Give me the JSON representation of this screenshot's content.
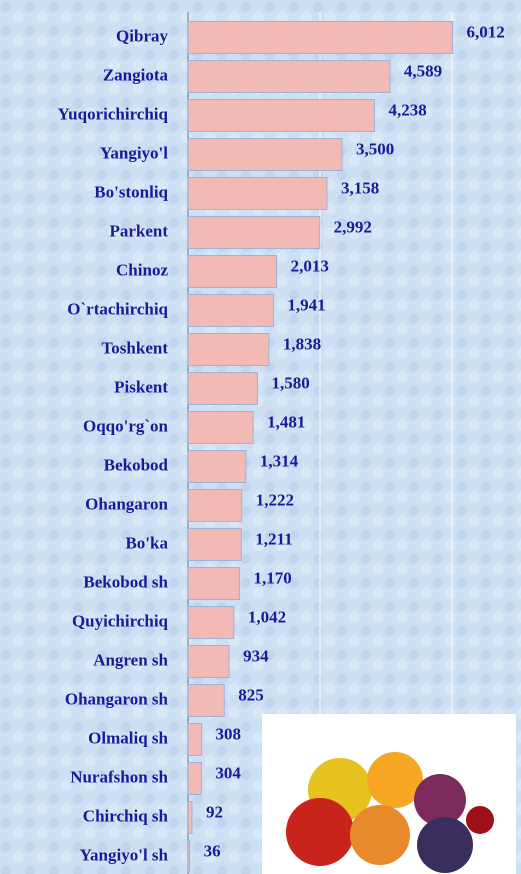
{
  "chart_data": {
    "type": "hbar",
    "categories": [
      "Qibray",
      "Zangiota",
      "Yuqorichirchiq",
      "Yangiyo'l",
      "Bo'stonliq",
      "Parkent",
      "Chinoz",
      "O`rtachirchiq",
      "Toshkent",
      "Piskent",
      "Oqqo'rg`on",
      "Bekobod",
      "Ohangaron",
      "Bo'ka",
      "Bekobod sh",
      "Quyichirchiq",
      "Angren sh",
      "Ohangaron sh",
      "Olmaliq sh",
      "Nurafshon sh",
      "Chirchiq sh",
      "Yangiyo'l sh"
    ],
    "values": [
      6012,
      4589,
      4238,
      3500,
      3158,
      2992,
      2013,
      1941,
      1838,
      1580,
      1481,
      1314,
      1222,
      1211,
      1170,
      1042,
      934,
      825,
      308,
      304,
      92,
      36
    ],
    "value_labels": [
      "6,012",
      "4,589",
      "4,238",
      "3,500",
      "3,158",
      "2,992",
      "2,013",
      "1,941",
      "1,838",
      "1,580",
      "1,481",
      "1,314",
      "1,222",
      "1,211",
      "1,170",
      "1,042",
      "934",
      "825",
      "308",
      "304",
      "92",
      "36"
    ],
    "color": "#f2b9b5",
    "xlim": [
      0,
      6000
    ]
  }
}
